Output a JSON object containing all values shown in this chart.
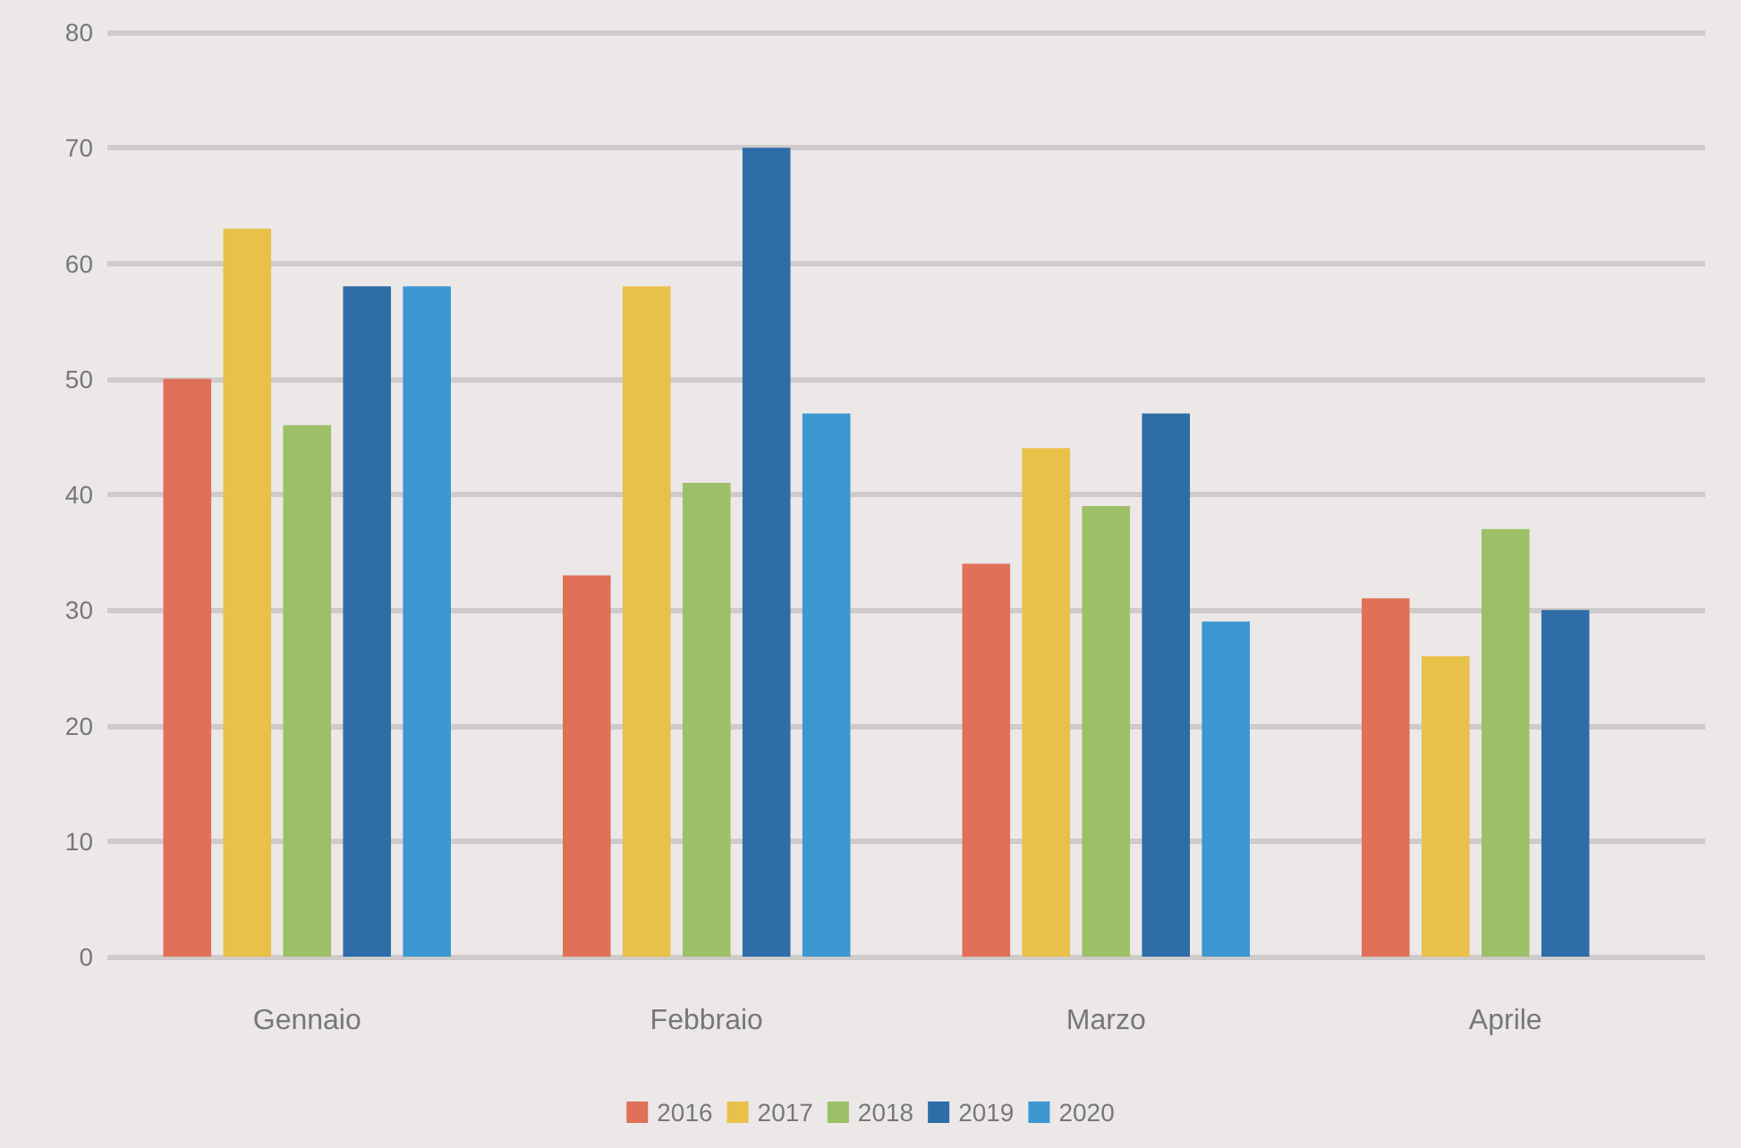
{
  "chart_data": {
    "type": "bar",
    "categories": [
      "Gennaio",
      "Febbraio",
      "Marzo",
      "Aprile"
    ],
    "series": [
      {
        "name": "2016",
        "color": "#e07058",
        "values": [
          50,
          33,
          34,
          31
        ]
      },
      {
        "name": "2017",
        "color": "#e8c04a",
        "values": [
          63,
          58,
          44,
          26
        ]
      },
      {
        "name": "2018",
        "color": "#9dbf68",
        "values": [
          46,
          41,
          39,
          37
        ]
      },
      {
        "name": "2019",
        "color": "#2e6da8",
        "values": [
          58,
          70,
          47,
          30
        ]
      },
      {
        "name": "2020",
        "color": "#3d97d0",
        "values": [
          58,
          47,
          29,
          null
        ]
      }
    ],
    "ylim": [
      0,
      80
    ],
    "yticks": [
      0,
      10,
      20,
      30,
      40,
      50,
      60,
      70,
      80
    ],
    "grid": "y",
    "legend": "bottom"
  }
}
